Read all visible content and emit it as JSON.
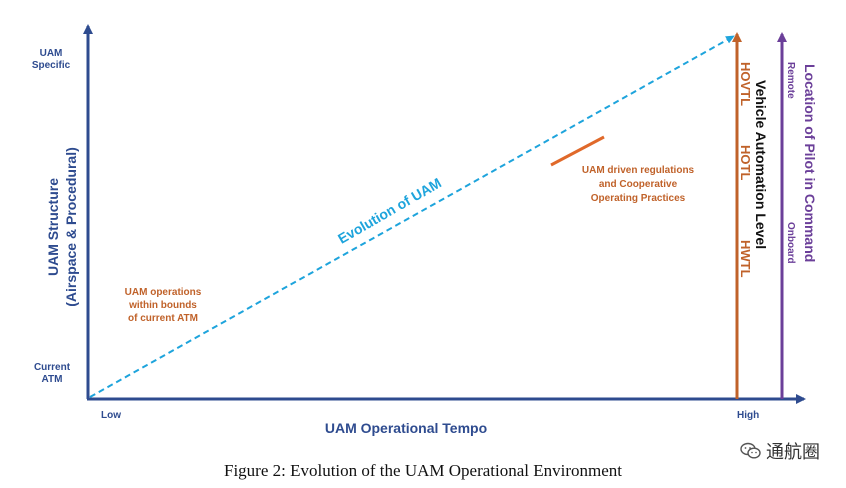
{
  "diagram": {
    "y_axis": {
      "title_line1": "UAM Structure",
      "title_line2": "(Airspace & Procedural)",
      "top_label_line1": "UAM",
      "top_label_line2": "Specific",
      "bottom_label_line1": "Current",
      "bottom_label_line2": "ATM"
    },
    "x_axis": {
      "title": "UAM Operational Tempo",
      "low_label": "Low",
      "high_label": "High"
    },
    "evolution_line_label": "Evolution of UAM",
    "left_annotation": [
      "UAM operations",
      "within bounds",
      "of current ATM"
    ],
    "right_annotation": [
      "UAM driven regulations",
      "and Cooperative",
      "Operating Practices"
    ],
    "automation_axis": {
      "title": "Vehicle Automation Level",
      "levels": [
        "HOVTL",
        "HOTL",
        "HWTL"
      ]
    },
    "pilot_axis": {
      "title": "Location of Pilot in Command",
      "remote_label": "Remote",
      "onboard_label": "Onboard"
    }
  },
  "caption": "Figure 2: Evolution of the UAM Operational Environment",
  "watermark": "通航圈",
  "colors": {
    "axis_blue": "#2e4b8f",
    "dashed_line": "#1ea4dc",
    "orange": "#c0622a",
    "purple": "#6b3f99"
  }
}
